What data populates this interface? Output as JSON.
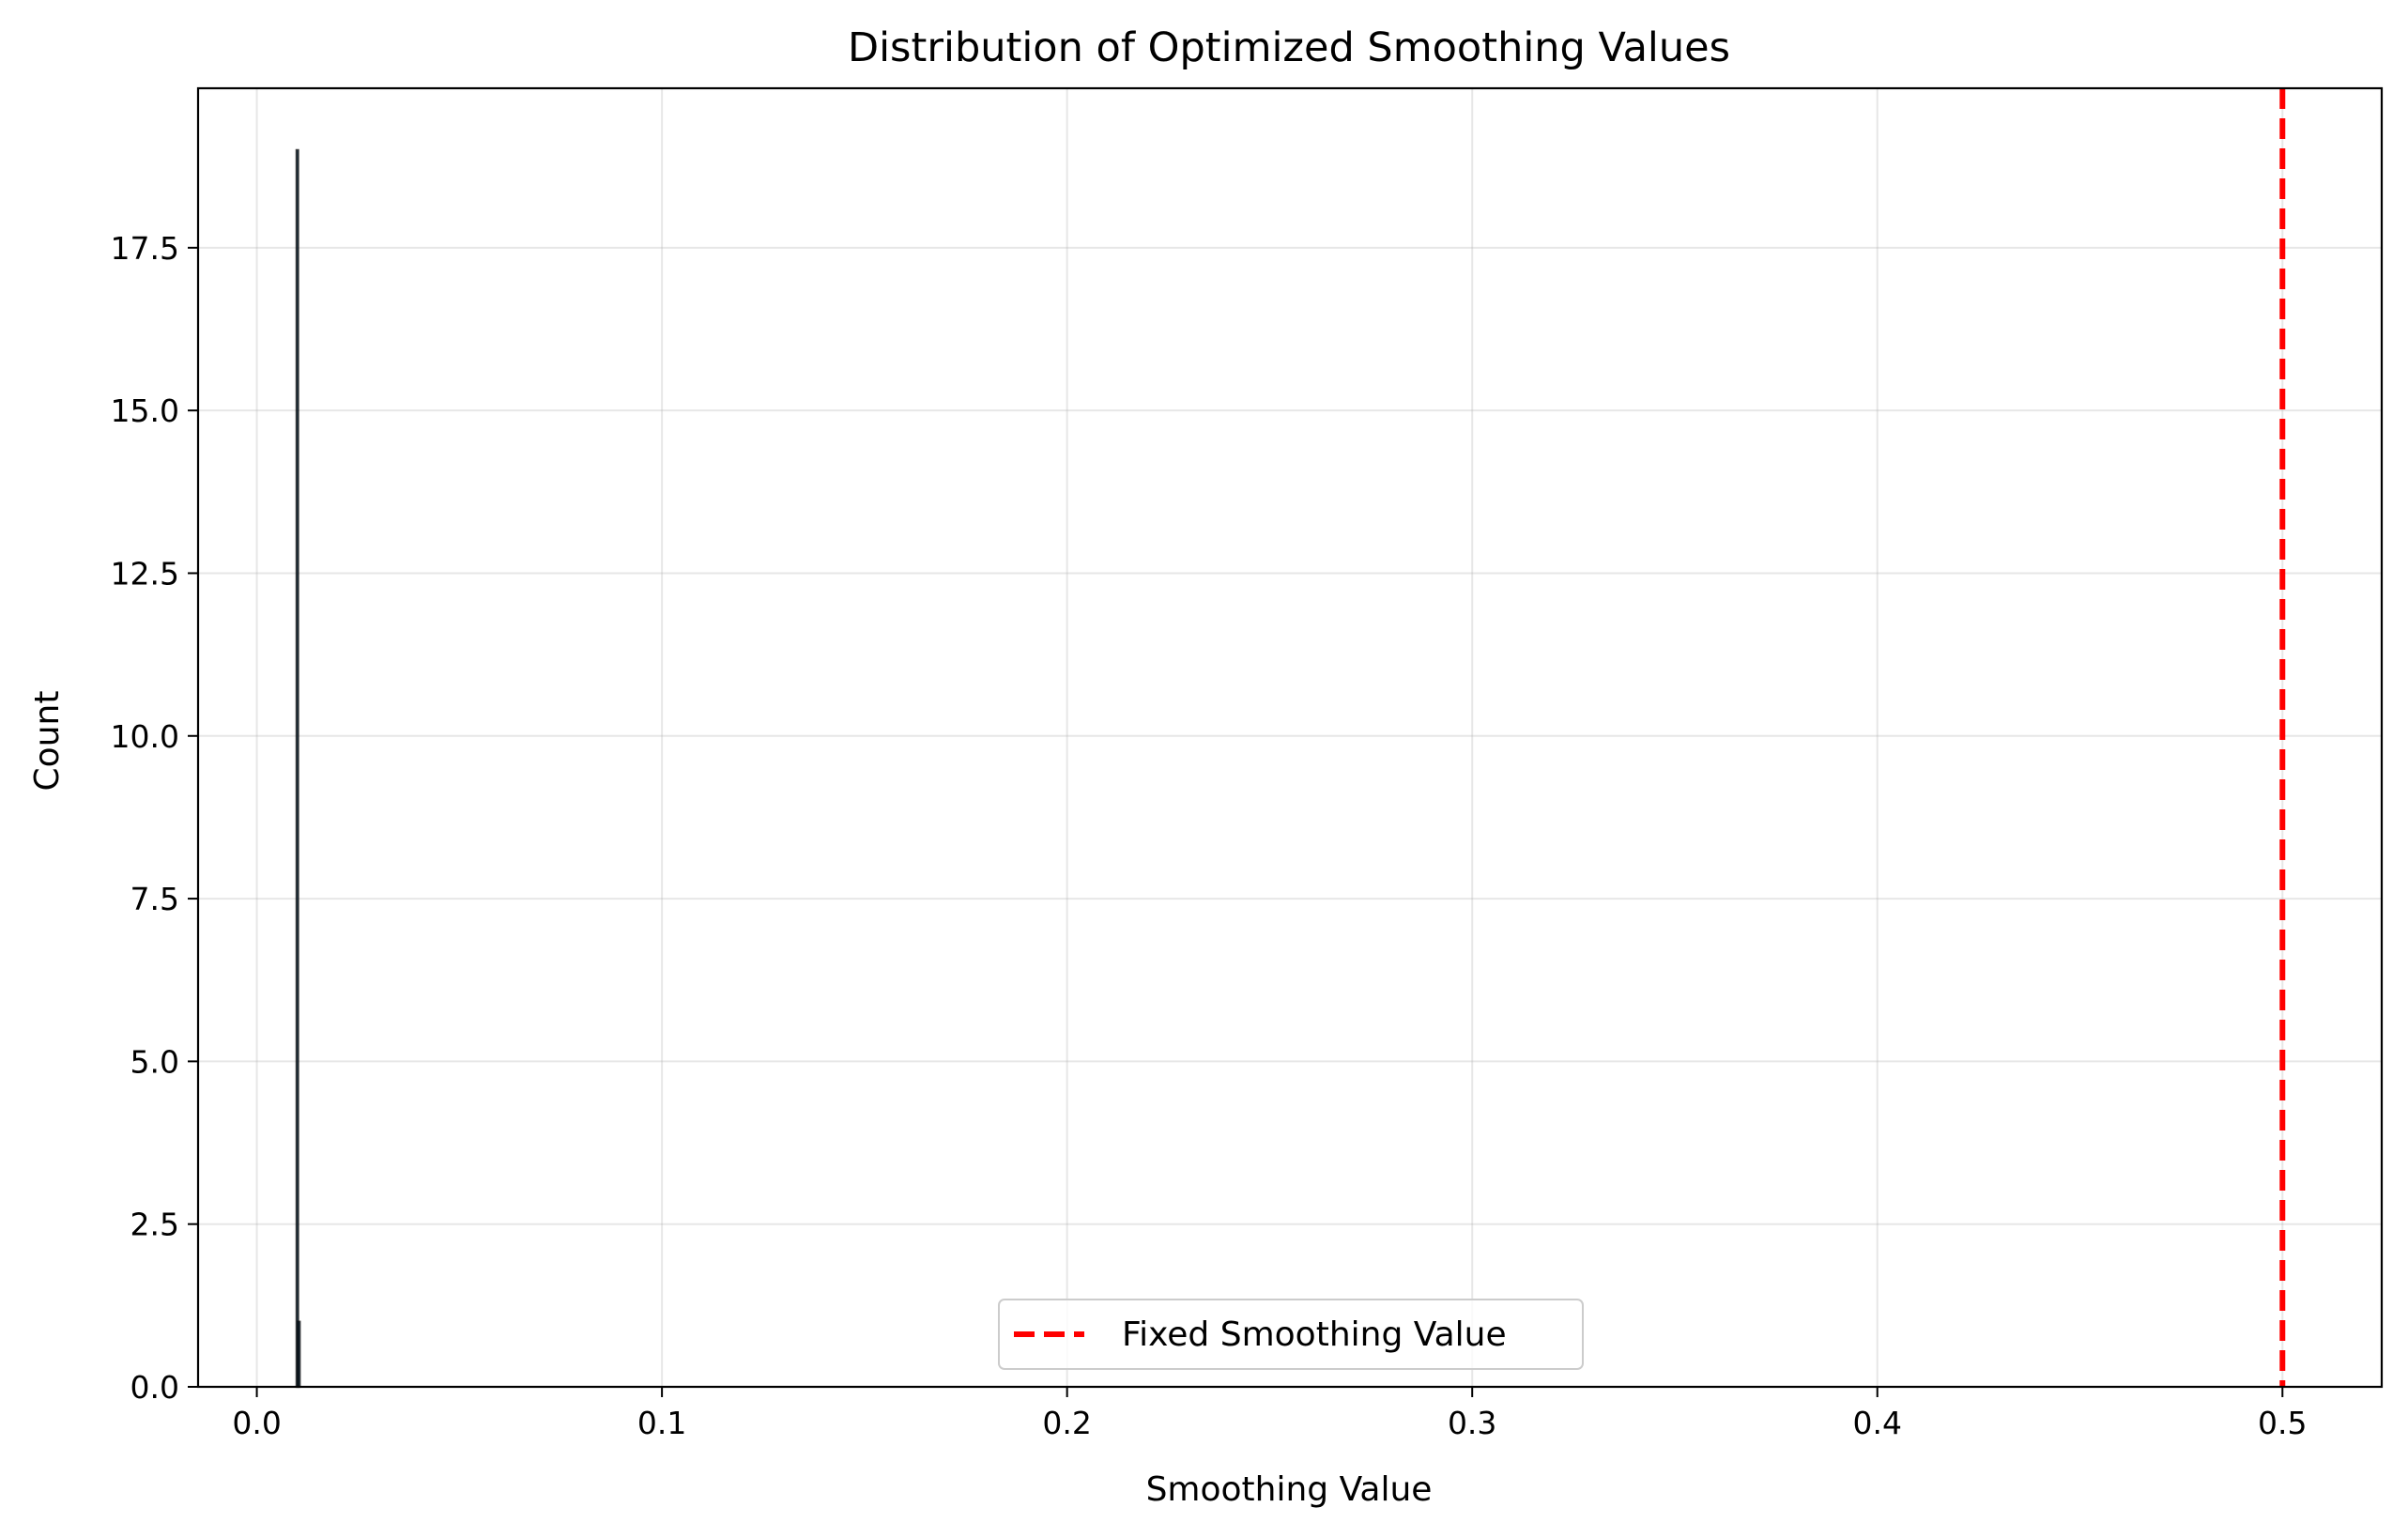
{
  "chart_data": {
    "type": "bar",
    "title": "Distribution of Optimized Smoothing Values",
    "xlabel": "Smoothing Value",
    "ylabel": "Count",
    "xlim": [
      -0.0145,
      0.5245
    ],
    "ylim": [
      0,
      19.95
    ],
    "x_ticks": [
      0.0,
      0.1,
      0.2,
      0.3,
      0.4,
      0.5
    ],
    "x_tick_labels": [
      "0.0",
      "0.1",
      "0.2",
      "0.3",
      "0.4",
      "0.5"
    ],
    "y_ticks": [
      0,
      2.5,
      5,
      7.5,
      10,
      12.5,
      15,
      17.5
    ],
    "y_tick_labels": [
      "0.0",
      "2.5",
      "5.0",
      "7.5",
      "10.0",
      "12.5",
      "15.0",
      "17.5"
    ],
    "bins": [
      {
        "x0": 0.0098,
        "x1": 0.0102,
        "count": 19
      },
      {
        "x0": 0.0102,
        "x1": 0.0106,
        "count": 1
      }
    ],
    "bar_color": "#1f77b4",
    "bar_edge_color": "#000000",
    "reference_line": {
      "x": 0.5,
      "label": "Fixed Smoothing Value",
      "color": "#ff0000",
      "style": "dashed"
    },
    "grid": true,
    "legend": {
      "position": "lower center",
      "entries": [
        "Fixed Smoothing Value"
      ]
    }
  }
}
